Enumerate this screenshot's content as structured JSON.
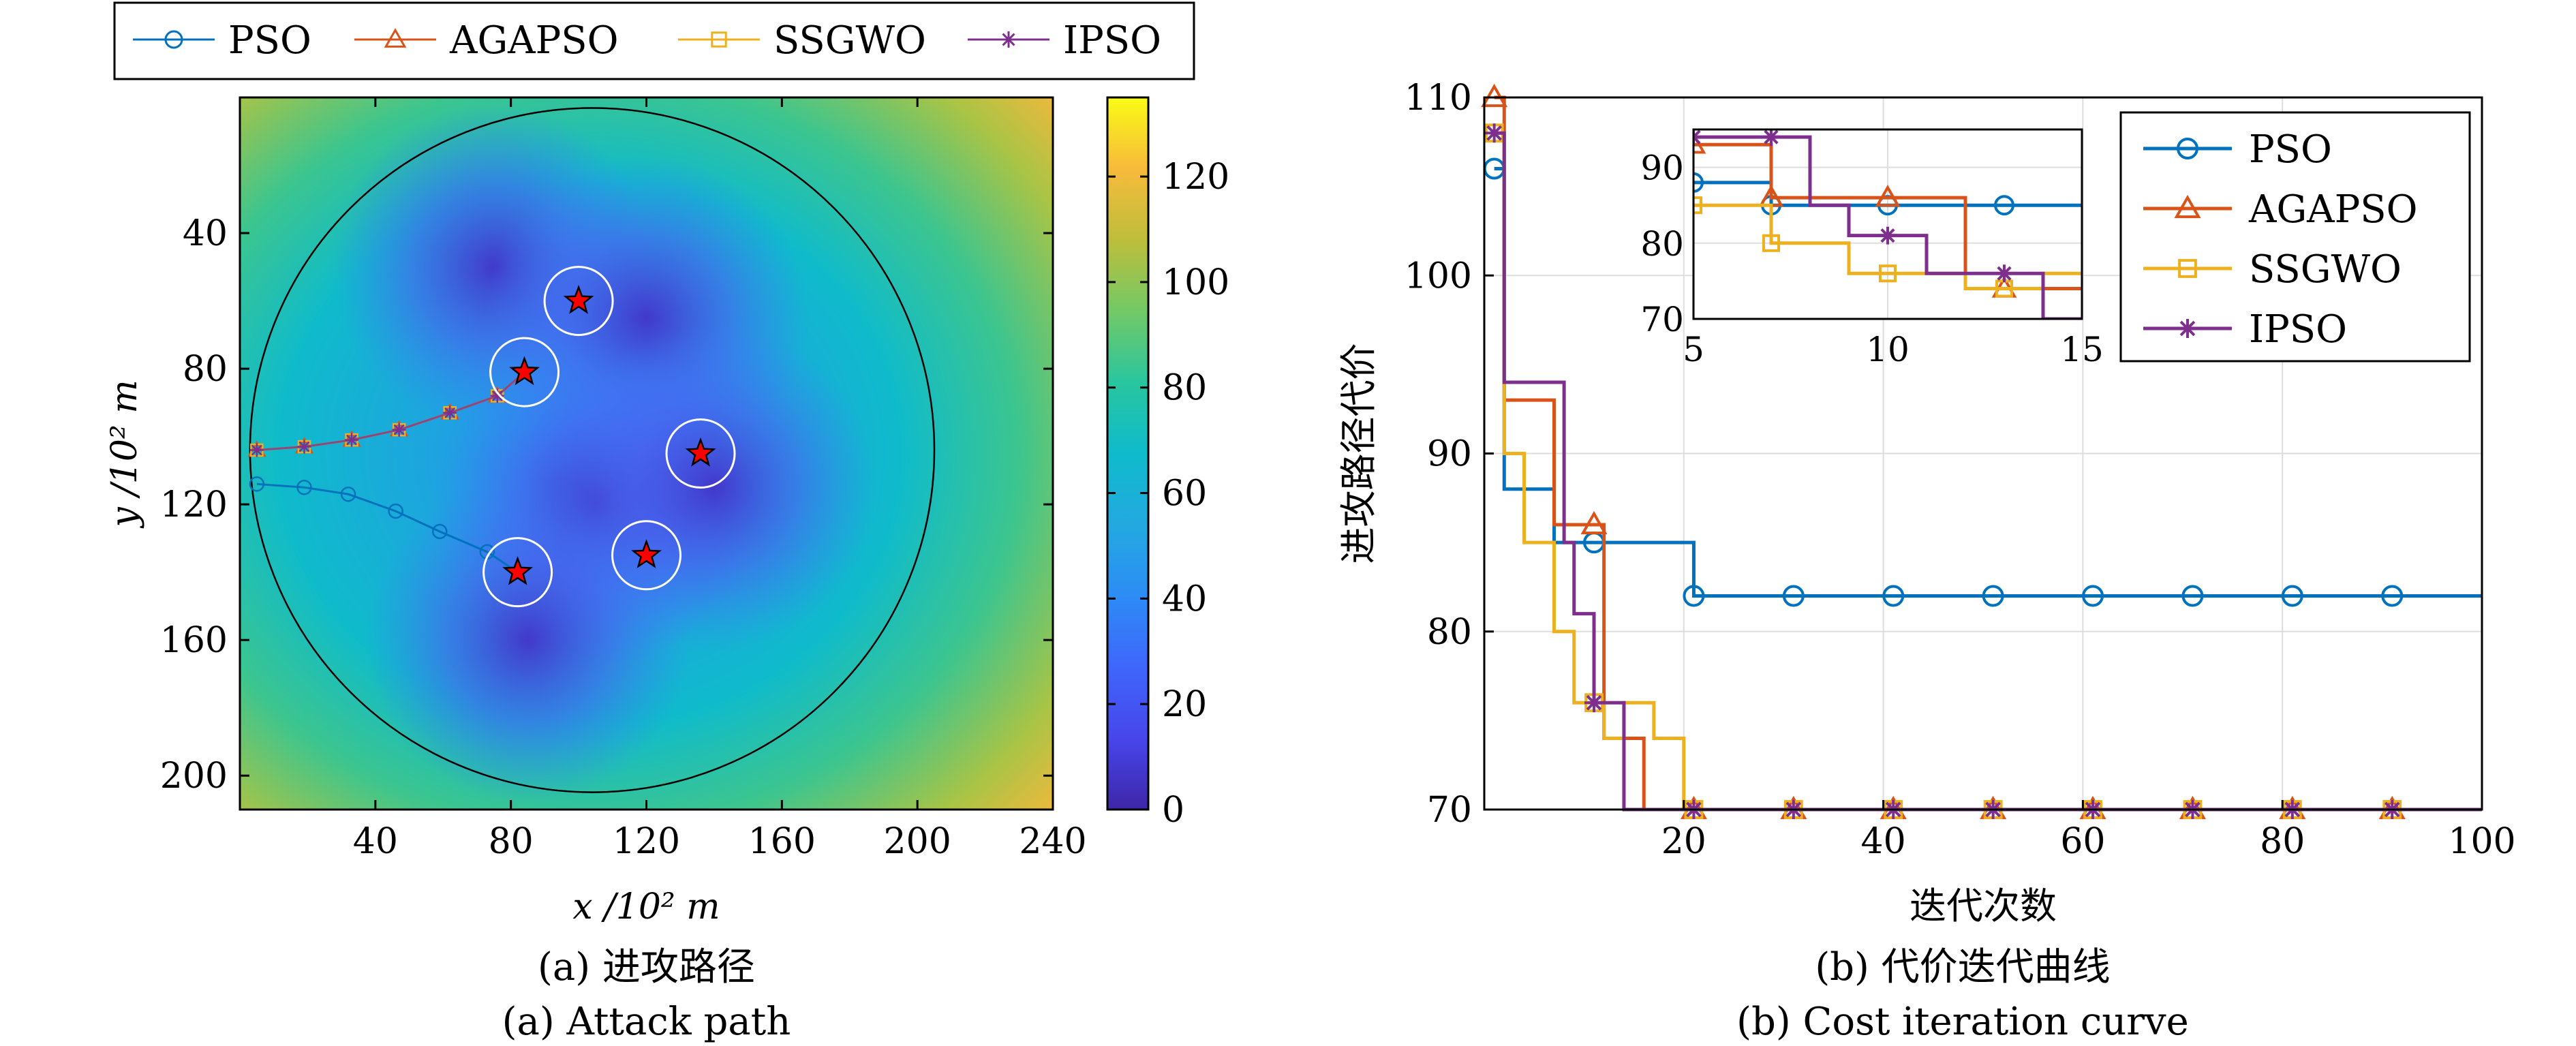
{
  "colors": {
    "PSO": "#0072BD",
    "AGAPSO": "#D95319",
    "SSGWO": "#EDB120",
    "IPSO": "#7E2F8E",
    "obstacle_star": "#ff0000"
  },
  "chart_data": [
    {
      "type": "heatmap",
      "caption_cn": "(a) 进攻路径",
      "caption_en": "(a) Attack path",
      "xlabel": "x /10² m",
      "ylabel": "y /10² m",
      "xlim": [
        0,
        240
      ],
      "ylim": [
        210,
        0
      ],
      "y_axis_reversed": true,
      "xticks": [
        "40",
        "80",
        "120",
        "160",
        "200",
        "240"
      ],
      "yticks": [
        "40",
        "80",
        "120",
        "160",
        "200"
      ],
      "colorbar": {
        "min": 0,
        "max": 135,
        "ticks": [
          "0",
          "20",
          "40",
          "60",
          "80",
          "100",
          "120"
        ],
        "colormap": "parula"
      },
      "legend": {
        "placement": "top-outside",
        "entries": [
          "PSO",
          "AGAPSO",
          "SSGWO",
          "IPSO"
        ]
      },
      "boundary_circle": {
        "cx": 104,
        "cy": 104,
        "r": 101
      },
      "threat_centers": [
        [
          75,
          50
        ],
        [
          120,
          65
        ],
        [
          105,
          120
        ],
        [
          85,
          160
        ],
        [
          140,
          115
        ]
      ],
      "targets": [
        {
          "x": 100,
          "y": 60
        },
        {
          "x": 84,
          "y": 81
        },
        {
          "x": 136,
          "y": 105
        },
        {
          "x": 120,
          "y": 135
        },
        {
          "x": 82,
          "y": 140
        }
      ],
      "series": [
        {
          "name": "PSO",
          "x": [
            5,
            19,
            32,
            46,
            59,
            73,
            82
          ],
          "y": [
            114,
            115,
            117,
            122,
            128,
            134,
            140
          ]
        },
        {
          "name": "AGAPSO",
          "x": [
            5,
            19,
            33,
            47,
            62,
            76,
            84
          ],
          "y": [
            104,
            103,
            101,
            98,
            93,
            88,
            81
          ]
        },
        {
          "name": "SSGWO",
          "x": [
            5,
            19,
            33,
            47,
            62,
            76,
            84
          ],
          "y": [
            104,
            103,
            101,
            98,
            93,
            88,
            81
          ]
        },
        {
          "name": "IPSO",
          "x": [
            5,
            19,
            33,
            47,
            62,
            76,
            84
          ],
          "y": [
            104,
            103,
            101,
            98,
            93,
            88,
            81
          ]
        }
      ]
    },
    {
      "type": "line",
      "caption_cn": "(b) 代价迭代曲线",
      "caption_en": "(b) Cost iteration curve",
      "xlabel": "迭代次数",
      "ylabel": "进攻路径代价",
      "xlim": [
        0,
        100
      ],
      "ylim": [
        70,
        110
      ],
      "xticks": [
        "20",
        "40",
        "60",
        "80",
        "100"
      ],
      "yticks": [
        "70",
        "80",
        "90",
        "100",
        "110"
      ],
      "grid": true,
      "legend": {
        "placement": "top-right",
        "entries": [
          "PSO",
          "AGAPSO",
          "SSGWO",
          "IPSO"
        ]
      },
      "inset": {
        "xlim": [
          5,
          15
        ],
        "ylim": [
          70,
          95
        ],
        "xticks": [
          "5",
          "10",
          "15"
        ],
        "yticks": [
          "70",
          "80",
          "90"
        ],
        "grid": true
      },
      "series": [
        {
          "name": "PSO",
          "marker": "circle",
          "steps": [
            [
              1,
              106
            ],
            [
              2,
              88
            ],
            [
              6,
              88
            ],
            [
              7,
              85
            ],
            [
              20,
              85
            ],
            [
              21,
              82
            ],
            [
              100,
              82
            ]
          ],
          "markers_x": [
            1,
            11,
            21,
            31,
            41,
            51,
            61,
            71,
            81,
            91
          ]
        },
        {
          "name": "AGAPSO",
          "marker": "triangle",
          "steps": [
            [
              1,
              110
            ],
            [
              2,
              93
            ],
            [
              6,
              93
            ],
            [
              7,
              86
            ],
            [
              11,
              86
            ],
            [
              12,
              74
            ],
            [
              15,
              74
            ],
            [
              16,
              70
            ],
            [
              100,
              70
            ]
          ],
          "markers_x": [
            1,
            11,
            21,
            31,
            41,
            51,
            61,
            71,
            81,
            91
          ]
        },
        {
          "name": "SSGWO",
          "marker": "square",
          "steps": [
            [
              1,
              108
            ],
            [
              2,
              90
            ],
            [
              3,
              90
            ],
            [
              4,
              85
            ],
            [
              6,
              85
            ],
            [
              7,
              80
            ],
            [
              8,
              80
            ],
            [
              9,
              76
            ],
            [
              11,
              76
            ],
            [
              12,
              74
            ],
            [
              13,
              74
            ],
            [
              14,
              76
            ],
            [
              16,
              76
            ],
            [
              17,
              74
            ],
            [
              19,
              74
            ],
            [
              20,
              70
            ],
            [
              100,
              70
            ]
          ],
          "markers_x": [
            1,
            11,
            21,
            31,
            41,
            51,
            61,
            71,
            81,
            91
          ]
        },
        {
          "name": "IPSO",
          "marker": "asterisk",
          "steps": [
            [
              1,
              108
            ],
            [
              2,
              94
            ],
            [
              7,
              94
            ],
            [
              8,
              85
            ],
            [
              9,
              81
            ],
            [
              10,
              81
            ],
            [
              11,
              76
            ],
            [
              12,
              76
            ],
            [
              13,
              76
            ],
            [
              14,
              70
            ],
            [
              100,
              70
            ]
          ],
          "markers_x": [
            1,
            11,
            21,
            31,
            41,
            51,
            61,
            71,
            81,
            91
          ]
        }
      ]
    }
  ]
}
